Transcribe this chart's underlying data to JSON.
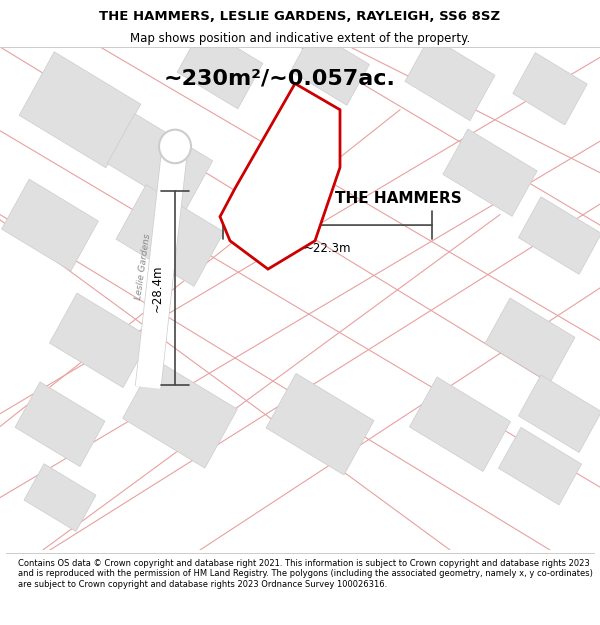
{
  "title_line1": "THE HAMMERS, LESLIE GARDENS, RAYLEIGH, SS6 8SZ",
  "title_line2": "Map shows position and indicative extent of the property.",
  "area_label": "~230m²/~0.057ac.",
  "property_label": "THE HAMMERS",
  "dim_width": "~22.3m",
  "dim_height": "~28.4m",
  "footer": "Contains OS data © Crown copyright and database right 2021. This information is subject to Crown copyright and database rights 2023 and is reproduced with the permission of HM Land Registry. The polygons (including the associated geometry, namely x, y co-ordinates) are subject to Crown copyright and database rights 2023 Ordnance Survey 100026316.",
  "bg_color": "#f5f5f5",
  "map_bg": "#f0f0f0",
  "road_color": "#ffffff",
  "building_color": "#e0e0e0",
  "property_outline_color": "#cc0000",
  "dim_line_color": "#444444",
  "road_outline_color": "#e8a0a0",
  "leslie_gardens_road_color": "#d8d8d8"
}
